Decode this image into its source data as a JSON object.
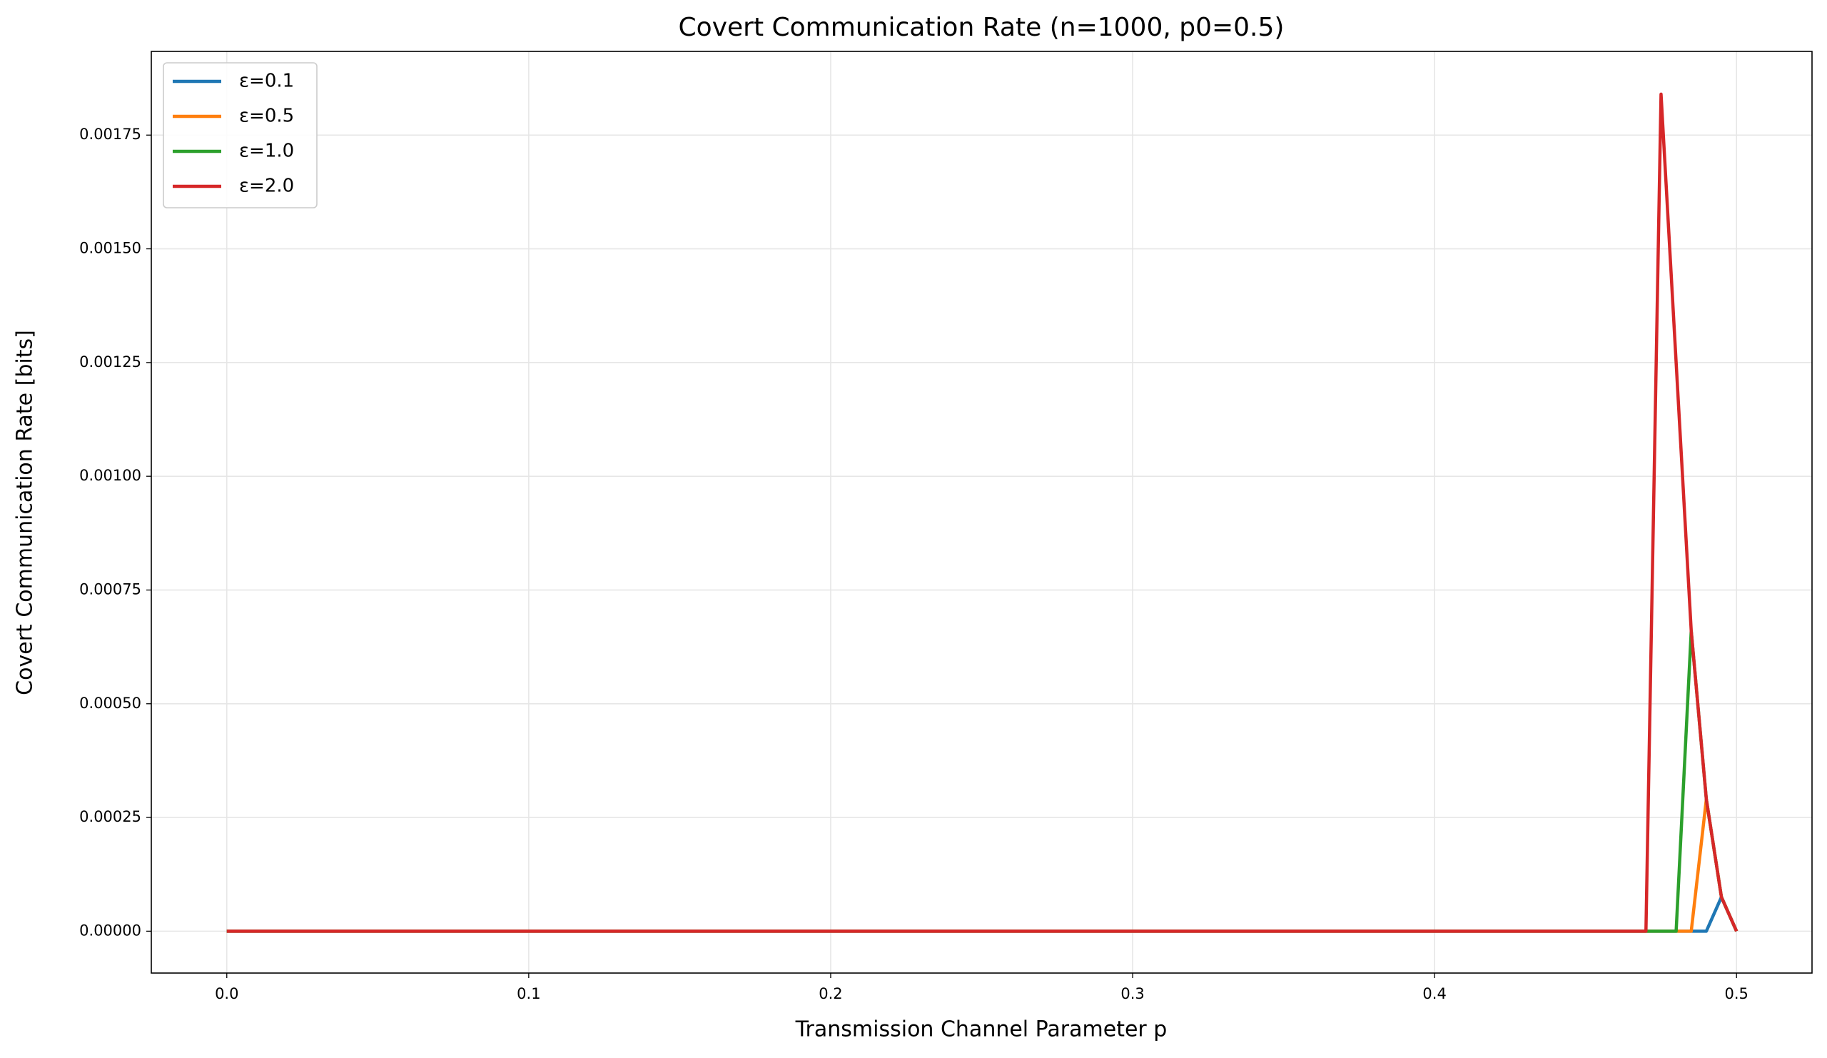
{
  "chart_data": {
    "type": "line",
    "title": "Covert Communication Rate (n=1000, p0=0.5)",
    "x_label": "Transmission Channel Parameter p",
    "y_label": "Covert Communication Rate [bits]",
    "x": [
      0,
      0.47,
      0.475,
      0.48,
      0.485,
      0.49,
      0.495,
      0.5
    ],
    "series": [
      {
        "name": "ε=0.1",
        "color": "#1f77b4",
        "values": [
          0,
          0,
          0,
          0,
          0,
          0,
          7.5e-05,
          0
        ]
      },
      {
        "name": "ε=0.5",
        "color": "#ff7f0e",
        "values": [
          0,
          0,
          0,
          0,
          0,
          0.00029,
          7.5e-05,
          0
        ]
      },
      {
        "name": "ε=1.0",
        "color": "#2ca02c",
        "values": [
          0,
          0,
          0,
          0,
          0.00066,
          0.00029,
          7.5e-05,
          0
        ]
      },
      {
        "name": "ε=2.0",
        "color": "#d62728",
        "values": [
          0,
          0,
          0.00184,
          0.00125,
          0.00066,
          0.00029,
          7.5e-05,
          0
        ]
      }
    ],
    "xlim": [
      -0.025,
      0.525
    ],
    "xticks": [
      {
        "value": 0,
        "label": "0.0"
      },
      0.1,
      0.2,
      0.3,
      0.4,
      0.5
    ],
    "ylim": [
      -9.2e-05,
      0.001934
    ],
    "yticks": [
      {
        "value": 0,
        "label": "0.00000"
      },
      {
        "value": 0.00025,
        "label": "0.00025"
      },
      {
        "value": 0.0005,
        "label": "0.00050"
      },
      {
        "value": 0.00075,
        "label": "0.00075"
      },
      {
        "value": 0.001,
        "label": "0.00100"
      },
      {
        "value": 0.00125,
        "label": "0.00125"
      },
      {
        "value": 0.0015,
        "label": "0.00150"
      },
      {
        "value": 0.00175,
        "label": "0.00175"
      }
    ],
    "grid": true,
    "legend": "upper left"
  }
}
